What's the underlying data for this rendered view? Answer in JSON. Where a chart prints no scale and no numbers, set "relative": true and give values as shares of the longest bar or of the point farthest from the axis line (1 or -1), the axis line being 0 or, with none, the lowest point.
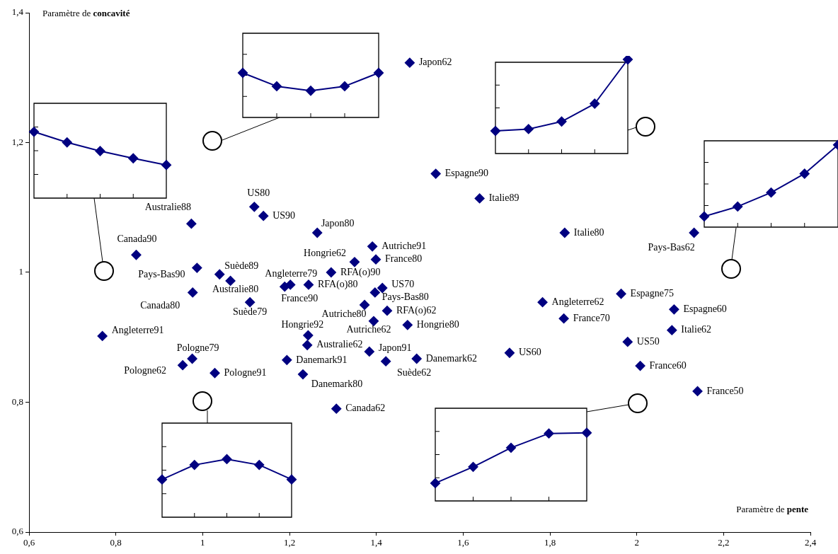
{
  "chart_data": [
    {
      "type": "scatter",
      "xlabel": "Paramètre de pente",
      "ylabel": "Paramètre de concavité",
      "x": [
        1.477,
        1.537,
        1.638,
        1.834,
        2.132,
        1.119,
        1.14,
        1.264,
        0.974,
        0.847,
        1.391,
        1.35,
        1.399,
        0.987,
        1.039,
        1.064,
        1.202,
        1.189,
        1.244,
        1.296,
        1.414,
        1.397,
        0.977,
        1.109,
        1.373,
        1.425,
        1.783,
        1.964,
        2.086,
        1.394,
        1.472,
        1.832,
        2.081,
        0.769,
        1.243,
        1.241,
        1.979,
        1.384,
        1.707,
        0.976,
        0.954,
        1.028,
        1.194,
        1.493,
        1.422,
        1.231,
        2.008,
        2.14,
        1.308
      ],
      "series": [
        {
          "color": "#000080",
          "values": [
            1.323,
            1.152,
            1.114,
            1.061,
            1.061,
            1.101,
            1.087,
            1.061,
            1.075,
            1.027,
            1.04,
            1.016,
            1.02,
            1.007,
            0.997,
            0.987,
            0.981,
            0.978,
            0.981,
            1.0,
            0.976,
            0.969,
            0.969,
            0.954,
            0.95,
            0.941,
            0.954,
            0.967,
            0.943,
            0.925,
            0.919,
            0.929,
            0.911,
            0.902,
            0.903,
            0.888,
            0.893,
            0.878,
            0.876,
            0.867,
            0.857,
            0.845,
            0.865,
            0.867,
            0.863,
            0.843,
            0.856,
            0.817,
            0.79
          ]
        }
      ],
      "annotations": [
        {
          "text": "Japon62",
          "x": 1.477,
          "y": 1.323
        },
        {
          "text": "Espagne90",
          "x": 1.537,
          "y": 1.152
        },
        {
          "text": "Italie89",
          "x": 1.638,
          "y": 1.114
        },
        {
          "text": "Italie80",
          "x": 1.834,
          "y": 1.061
        },
        {
          "text": "Pays-Bas62",
          "x": 2.132,
          "y": 1.061
        },
        {
          "text": "US80",
          "x": 1.119,
          "y": 1.101
        },
        {
          "text": "US90",
          "x": 1.14,
          "y": 1.087
        },
        {
          "text": "Japon80",
          "x": 1.264,
          "y": 1.061
        },
        {
          "text": "Australie88",
          "x": 0.974,
          "y": 1.075
        },
        {
          "text": "Canada90",
          "x": 0.847,
          "y": 1.027
        },
        {
          "text": "Autriche91",
          "x": 1.391,
          "y": 1.04
        },
        {
          "text": "Hongrie62",
          "x": 1.35,
          "y": 1.016
        },
        {
          "text": "France80",
          "x": 1.399,
          "y": 1.02
        },
        {
          "text": "Pays-Bas90",
          "x": 0.987,
          "y": 1.007
        },
        {
          "text": "Suède89",
          "x": 1.039,
          "y": 0.997
        },
        {
          "text": "Australie80",
          "x": 1.064,
          "y": 0.987
        },
        {
          "text": "Angleterre79",
          "x": 1.202,
          "y": 0.981
        },
        {
          "text": "France90",
          "x": 1.189,
          "y": 0.978
        },
        {
          "text": "RFA(o)80",
          "x": 1.244,
          "y": 0.981
        },
        {
          "text": "RFA(o)90",
          "x": 1.296,
          "y": 1.0
        },
        {
          "text": "US70",
          "x": 1.414,
          "y": 0.976
        },
        {
          "text": "Pays-Bas80",
          "x": 1.397,
          "y": 0.969
        },
        {
          "text": "Canada80",
          "x": 0.977,
          "y": 0.969
        },
        {
          "text": "Suède79",
          "x": 1.109,
          "y": 0.954
        },
        {
          "text": "Autriche80",
          "x": 1.373,
          "y": 0.95
        },
        {
          "text": "RFA(o)62",
          "x": 1.425,
          "y": 0.941
        },
        {
          "text": "Angleterre62",
          "x": 1.783,
          "y": 0.954
        },
        {
          "text": "Espagne75",
          "x": 1.964,
          "y": 0.967
        },
        {
          "text": "Espagne60",
          "x": 2.086,
          "y": 0.943
        },
        {
          "text": "Autriche62",
          "x": 1.394,
          "y": 0.925
        },
        {
          "text": "Hongrie80",
          "x": 1.472,
          "y": 0.919
        },
        {
          "text": "France70",
          "x": 1.832,
          "y": 0.929
        },
        {
          "text": "Italie62",
          "x": 2.081,
          "y": 0.911
        },
        {
          "text": "Angleterre91",
          "x": 0.769,
          "y": 0.902
        },
        {
          "text": "Hongrie92",
          "x": 1.243,
          "y": 0.903
        },
        {
          "text": "Australie62",
          "x": 1.241,
          "y": 0.888
        },
        {
          "text": "US50",
          "x": 1.979,
          "y": 0.893
        },
        {
          "text": "Japon91",
          "x": 1.384,
          "y": 0.878
        },
        {
          "text": "US60",
          "x": 1.707,
          "y": 0.876
        },
        {
          "text": "Pologne79",
          "x": 0.976,
          "y": 0.867
        },
        {
          "text": "Pologne62",
          "x": 0.954,
          "y": 0.857
        },
        {
          "text": "Pologne91",
          "x": 1.028,
          "y": 0.845
        },
        {
          "text": "Danemark91",
          "x": 1.194,
          "y": 0.865
        },
        {
          "text": "Danemark62",
          "x": 1.493,
          "y": 0.867
        },
        {
          "text": "Suède62",
          "x": 1.422,
          "y": 0.863
        },
        {
          "text": "Danemark80",
          "x": 1.231,
          "y": 0.843
        },
        {
          "text": "France60",
          "x": 2.008,
          "y": 0.856
        },
        {
          "text": "France50",
          "x": 2.14,
          "y": 0.817
        },
        {
          "text": "Canada62",
          "x": 1.308,
          "y": 0.79
        }
      ],
      "xlim": [
        0.6,
        2.4
      ],
      "xticks": [
        {
          "value": 0.6,
          "label": "0,6"
        },
        {
          "value": 0.8,
          "label": "0,8"
        },
        1,
        {
          "value": 1.2,
          "label": "1,2"
        },
        {
          "value": 1.4,
          "label": "1,4"
        },
        {
          "value": 1.6,
          "label": "1,6"
        },
        {
          "value": 1.8,
          "label": "1,8"
        },
        2,
        {
          "value": 2.2,
          "label": "2,2"
        },
        {
          "value": 2.4,
          "label": "2,4"
        }
      ],
      "ylim": [
        0.6,
        1.4
      ],
      "yticks": [
        {
          "value": 0.6,
          "label": "0,6"
        },
        {
          "value": 0.8,
          "label": "0,8"
        },
        1,
        {
          "value": 1.2,
          "label": "1,2"
        },
        {
          "value": 1.4,
          "label": "1,4"
        }
      ],
      "grid": false,
      "legend": false,
      "marker": "diamond"
    },
    {
      "type": "line",
      "relative": true,
      "marker": "diamond",
      "categories": [
        null,
        null,
        null,
        null,
        null
      ],
      "series": [
        {
          "color": "#000080",
          "values": [
            1,
            0.84,
            0.71,
            0.6,
            0.5
          ]
        }
      ]
    },
    {
      "type": "line",
      "relative": true,
      "marker": "diamond",
      "categories": [
        null,
        null,
        null,
        null,
        null
      ],
      "series": [
        {
          "color": "#000080",
          "values": [
            1,
            0.7,
            0.6,
            0.7,
            1
          ]
        }
      ]
    },
    {
      "type": "line",
      "relative": true,
      "marker": "diamond",
      "categories": [
        null,
        null,
        null,
        null,
        null
      ],
      "series": [
        {
          "color": "#000080",
          "values": [
            0.24,
            0.26,
            0.34,
            0.53,
            1
          ]
        }
      ]
    },
    {
      "type": "line",
      "relative": true,
      "marker": "diamond",
      "categories": [
        null,
        null,
        null,
        null,
        null
      ],
      "series": [
        {
          "color": "#000080",
          "values": [
            0.13,
            0.25,
            0.42,
            0.65,
            1
          ]
        }
      ]
    },
    {
      "type": "line",
      "relative": true,
      "marker": "diamond",
      "categories": [
        null,
        null,
        null,
        null,
        null
      ],
      "series": [
        {
          "color": "#000080",
          "values": [
            0.65,
            0.9,
            1,
            0.9,
            0.65
          ]
        }
      ]
    },
    {
      "type": "line",
      "relative": true,
      "marker": "diamond",
      "categories": [
        null,
        null,
        null,
        null,
        null
      ],
      "series": [
        {
          "color": "#000080",
          "values": [
            0.26,
            0.5,
            0.78,
            0.99,
            1
          ]
        }
      ]
    }
  ]
}
